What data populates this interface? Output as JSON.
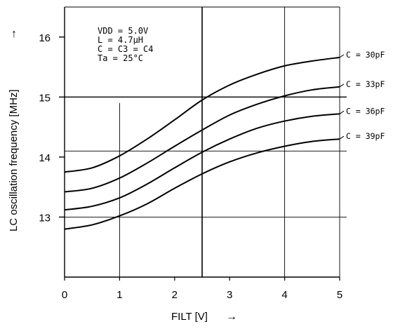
{
  "chart_data": {
    "type": "line",
    "xlabel": "FILT [V]",
    "ylabel": "LC oscillation frequency [MHz]",
    "xlabel_arrow": "→",
    "ylabel_arrow": "↑",
    "xlim": [
      0,
      5
    ],
    "ylim": [
      12,
      16.5
    ],
    "x_ticks": [
      0,
      1,
      2,
      3,
      4,
      5
    ],
    "y_ticks": [
      13,
      14,
      15,
      16
    ],
    "vertical_lines": [
      1,
      2.5,
      4,
      5
    ],
    "horizontal_lines": [
      13,
      14.1,
      15
    ],
    "conditions": {
      "vdd": "VDD = 5.0V",
      "l": "L = 4.7μH",
      "c": "C = C3 = C4",
      "ta": "Ta = 25°C"
    },
    "series": [
      {
        "name": "C = 30pF",
        "x": [
          0,
          0.5,
          1,
          1.5,
          2,
          2.5,
          3,
          3.5,
          4,
          4.5,
          5
        ],
        "values": [
          13.75,
          13.82,
          14.02,
          14.3,
          14.62,
          14.95,
          15.2,
          15.38,
          15.52,
          15.6,
          15.66
        ]
      },
      {
        "name": "C = 33pF",
        "x": [
          0,
          0.5,
          1,
          1.5,
          2,
          2.5,
          3,
          3.5,
          4,
          4.5,
          5
        ],
        "values": [
          13.42,
          13.48,
          13.65,
          13.9,
          14.18,
          14.45,
          14.7,
          14.88,
          15.02,
          15.12,
          15.17
        ]
      },
      {
        "name": "C = 36pF",
        "x": [
          0,
          0.5,
          1,
          1.5,
          2,
          2.5,
          3,
          3.5,
          4,
          4.5,
          5
        ],
        "values": [
          13.12,
          13.18,
          13.32,
          13.55,
          13.82,
          14.08,
          14.3,
          14.48,
          14.6,
          14.68,
          14.72
        ]
      },
      {
        "name": "C = 39pF",
        "x": [
          0,
          0.5,
          1,
          1.5,
          2,
          2.5,
          3,
          3.5,
          4,
          4.5,
          5
        ],
        "values": [
          12.8,
          12.87,
          13.02,
          13.22,
          13.48,
          13.72,
          13.92,
          14.07,
          14.18,
          14.26,
          14.3
        ]
      }
    ]
  }
}
